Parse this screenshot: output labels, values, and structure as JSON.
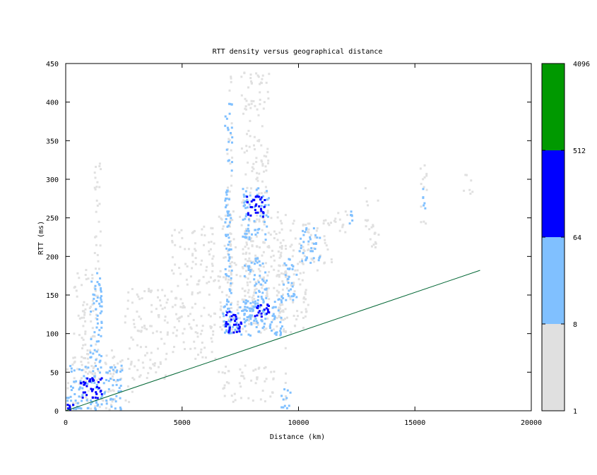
{
  "chart_data": {
    "type": "heatmap",
    "title": "RTT density versus geographical distance",
    "xlabel": "Distance (km)",
    "ylabel": "RTT (ms)",
    "xlim": [
      0,
      20000
    ],
    "ylim": [
      0,
      450
    ],
    "x_ticks": [
      "0",
      "5000",
      "10000",
      "15000",
      "20000"
    ],
    "y_ticks": [
      "0",
      "50",
      "100",
      "150",
      "200",
      "250",
      "300",
      "350",
      "400",
      "450"
    ],
    "colorbar": {
      "scale": "log",
      "ticks": [
        "1",
        "8",
        "64",
        "512",
        "4096"
      ],
      "bands": [
        {
          "from": 1,
          "to": 8,
          "color": "#e0e0e0"
        },
        {
          "from": 8,
          "to": 64,
          "color": "#80c0ff"
        },
        {
          "from": 64,
          "to": 512,
          "color": "#0000ff"
        },
        {
          "from": 512,
          "to": 4096,
          "color": "#009900"
        }
      ]
    },
    "colors": {
      "low": "#e0e0e0",
      "mid": "#80c0ff",
      "high": "#0000ff",
      "max": "#009900",
      "line": "#006633"
    },
    "reference_line": {
      "x": [
        0,
        17800
      ],
      "y": [
        0,
        182
      ]
    },
    "clusters": [
      {
        "x": [
          0,
          400
        ],
        "y": [
          0,
          10
        ],
        "level": 3
      },
      {
        "x": [
          0,
          3000
        ],
        "y": [
          0,
          80
        ],
        "level": 1
      },
      {
        "x": [
          0,
          2500
        ],
        "y": [
          0,
          60
        ],
        "level": 2
      },
      {
        "x": [
          600,
          1600
        ],
        "y": [
          15,
          45
        ],
        "level": 3
      },
      {
        "x": [
          700,
          1500
        ],
        "y": [
          40,
          190
        ],
        "level": 1
      },
      {
        "x": [
          1000,
          1600
        ],
        "y": [
          50,
          180
        ],
        "level": 2
      },
      {
        "x": [
          300,
          900
        ],
        "y": [
          60,
          180
        ],
        "level": 1
      },
      {
        "x": [
          1200,
          1600
        ],
        "y": [
          180,
          330
        ],
        "level": 1
      },
      {
        "x": [
          2500,
          4500
        ],
        "y": [
          40,
          160
        ],
        "level": 1
      },
      {
        "x": [
          4500,
          6500
        ],
        "y": [
          60,
          240
        ],
        "level": 1
      },
      {
        "x": [
          6500,
          9500
        ],
        "y": [
          95,
          260
        ],
        "level": 1
      },
      {
        "x": [
          6500,
          9000
        ],
        "y": [
          10,
          60
        ],
        "level": 1
      },
      {
        "x": [
          6900,
          7200
        ],
        "y": [
          100,
          440
        ],
        "level": 1
      },
      {
        "x": [
          7500,
          8800
        ],
        "y": [
          100,
          440
        ],
        "level": 1
      },
      {
        "x": [
          6700,
          9400
        ],
        "y": [
          95,
          150
        ],
        "level": 2
      },
      {
        "x": [
          6800,
          7200
        ],
        "y": [
          100,
          400
        ],
        "level": 2
      },
      {
        "x": [
          7600,
          8700
        ],
        "y": [
          110,
          200
        ],
        "level": 2
      },
      {
        "x": [
          6800,
          7600
        ],
        "y": [
          100,
          130
        ],
        "level": 3
      },
      {
        "x": [
          8000,
          8800
        ],
        "y": [
          120,
          140
        ],
        "level": 3
      },
      {
        "x": [
          7500,
          8800
        ],
        "y": [
          220,
          290
        ],
        "level": 2
      },
      {
        "x": [
          7700,
          8600
        ],
        "y": [
          250,
          280
        ],
        "level": 3
      },
      {
        "x": [
          9300,
          10000
        ],
        "y": [
          140,
          200
        ],
        "level": 2
      },
      {
        "x": [
          9200,
          9700
        ],
        "y": [
          0,
          30
        ],
        "level": 2
      },
      {
        "x": [
          9000,
          10500
        ],
        "y": [
          100,
          250
        ],
        "level": 1
      },
      {
        "x": [
          10000,
          11500
        ],
        "y": [
          180,
          250
        ],
        "level": 1
      },
      {
        "x": [
          10000,
          11000
        ],
        "y": [
          190,
          240
        ],
        "level": 2
      },
      {
        "x": [
          11500,
          12500
        ],
        "y": [
          230,
          260
        ],
        "level": 1
      },
      {
        "x": [
          12100,
          12400
        ],
        "y": [
          240,
          260
        ],
        "level": 2
      },
      {
        "x": [
          12800,
          13500
        ],
        "y": [
          210,
          290
        ],
        "level": 1
      },
      {
        "x": [
          15200,
          15600
        ],
        "y": [
          240,
          320
        ],
        "level": 1
      },
      {
        "x": [
          15300,
          15500
        ],
        "y": [
          260,
          290
        ],
        "level": 2
      },
      {
        "x": [
          17000,
          17600
        ],
        "y": [
          280,
          310
        ],
        "level": 1
      },
      {
        "x": [
          9400,
          9500
        ],
        "y": [
          0,
          270
        ],
        "level": 1
      }
    ]
  }
}
